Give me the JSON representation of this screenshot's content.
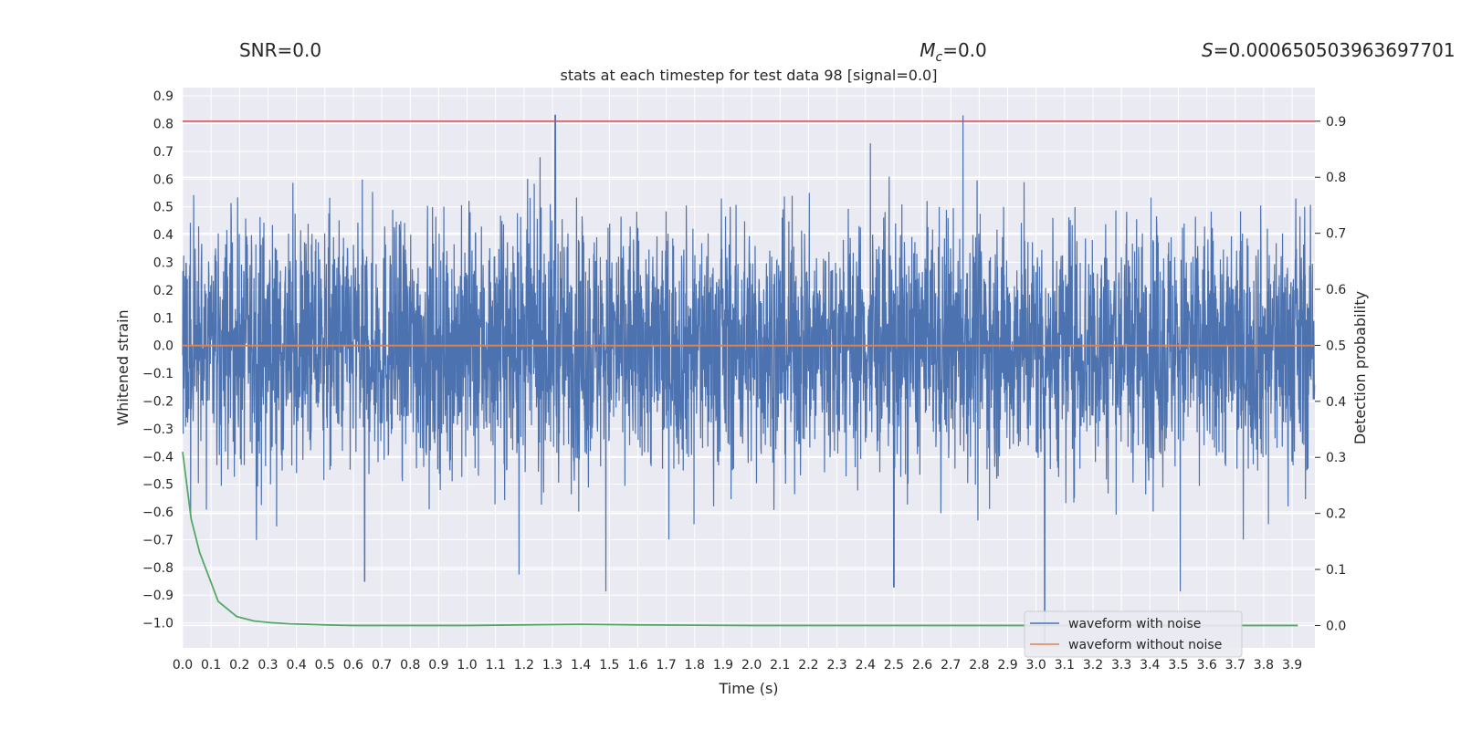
{
  "chart_data": {
    "type": "line",
    "title": "stats at each timestep for test data 98 [signal=0.0]",
    "xlabel": "Time (s)",
    "ylabel": "Whitened strain",
    "y2label": "Detection probability",
    "xlim": [
      0.0,
      3.98
    ],
    "ylim": [
      -1.09,
      0.93
    ],
    "y2lim": [
      -0.04,
      0.96
    ],
    "xticks": [
      "0.0",
      "0.1",
      "0.2",
      "0.3",
      "0.4",
      "0.5",
      "0.6",
      "0.7",
      "0.8",
      "0.9",
      "1.0",
      "1.1",
      "1.2",
      "1.3",
      "1.4",
      "1.5",
      "1.6",
      "1.7",
      "1.8",
      "1.9",
      "2.0",
      "2.1",
      "2.2",
      "2.3",
      "2.4",
      "2.5",
      "2.6",
      "2.7",
      "2.8",
      "2.9",
      "3.0",
      "3.1",
      "3.2",
      "3.3",
      "3.4",
      "3.5",
      "3.6",
      "3.7",
      "3.8",
      "3.9"
    ],
    "yticks": [
      "0.9",
      "0.8",
      "0.7",
      "0.6",
      "0.5",
      "0.4",
      "0.3",
      "0.2",
      "0.1",
      "0.0",
      "−0.1",
      "−0.2",
      "−0.3",
      "−0.4",
      "−0.5",
      "−0.6",
      "−0.7",
      "−0.8",
      "−0.9",
      "−1.0"
    ],
    "y2ticks": [
      "0.9",
      "0.8",
      "0.7",
      "0.6",
      "0.5",
      "0.4",
      "0.3",
      "0.2",
      "0.1",
      "0.0"
    ],
    "grid": true,
    "legend_position": "lower-right",
    "annotations": {
      "snr": "SNR=0.0",
      "mc_symbol": "M",
      "mc_sub": "c",
      "mc_value": "=0.0",
      "s_symbol": "S",
      "s_value": "=0.000650503963697701"
    },
    "threshold": 0.9,
    "series": [
      {
        "name": "waveform with noise",
        "color": "#4c72b0",
        "kind": "noise",
        "n_points": 4096,
        "range": [
          -1.07,
          0.83
        ],
        "peaks": [
          [
            1.31,
            0.83
          ],
          [
            3.03,
            -1.07
          ],
          [
            0.64,
            -0.85
          ],
          [
            2.5,
            -0.87
          ]
        ]
      },
      {
        "name": "waveform without noise",
        "color": "#dd8452",
        "x": [
          0.0,
          3.98
        ],
        "y": [
          0.0,
          0.0
        ]
      },
      {
        "name": "",
        "color": "#55a868",
        "axis": "right",
        "x": [
          0.0,
          0.03,
          0.06,
          0.09,
          0.125,
          0.19,
          0.25,
          0.31,
          0.375,
          0.44,
          0.5,
          0.6,
          0.8,
          1.0,
          1.2,
          1.4,
          1.6,
          2.0,
          2.5,
          3.0,
          3.5,
          3.92
        ],
        "y": [
          0.31,
          0.19,
          0.13,
          0.09,
          0.043,
          0.016,
          0.008,
          0.005,
          0.003,
          0.002,
          0.001,
          0.0,
          0.0,
          0.0,
          0.001,
          0.002,
          0.001,
          0.0,
          0.0,
          0.0,
          0.0,
          0.0
        ]
      },
      {
        "name": "",
        "color": "#c44e52",
        "axis": "right",
        "x": [
          0.0,
          3.98
        ],
        "y": [
          0.9,
          0.9
        ]
      }
    ]
  }
}
